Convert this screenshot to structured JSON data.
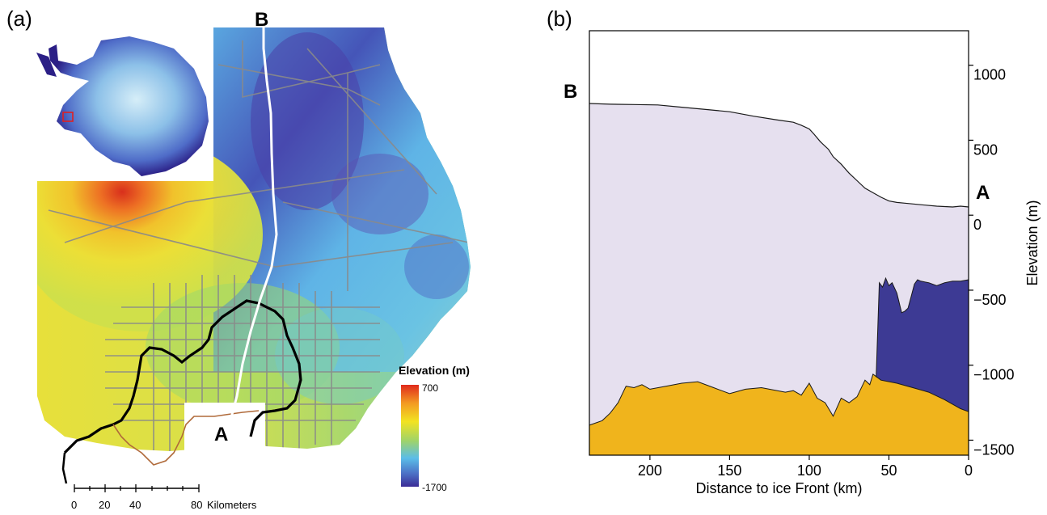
{
  "panel_a": {
    "label": "(a)",
    "marker_a": "A",
    "marker_b": "B",
    "colorbar_title": "Elevation (m)",
    "colorbar_max": "700",
    "colorbar_min": "-1700",
    "scalebar_ticks": [
      "0",
      "20",
      "40",
      "80"
    ],
    "scalebar_unit": "Kilometers",
    "colors": {
      "low": "#3b2c96",
      "mid_low": "#5fb8e8",
      "mid": "#a8d86b",
      "mid_high": "#f1e020",
      "high": "#e03020",
      "inset_ocean": "#2b1f86",
      "inset_ice_light": "#c8e8f4"
    }
  },
  "panel_b": {
    "label": "(b)",
    "marker_b": "B",
    "marker_a": "A"
  },
  "chart_data": [
    {
      "type": "area",
      "panel": "(b)",
      "xlabel": "Distance to ice Front (km)",
      "ylabel": "Elevation (m)",
      "xlim": [
        238,
        0
      ],
      "ylim": [
        -1600,
        1230
      ],
      "x_ticks": [
        200,
        150,
        100,
        50,
        0
      ],
      "y_ticks": [
        1000,
        500,
        0,
        -500,
        -1000,
        -1500
      ],
      "y_tick_labels": [
        "1000",
        "500",
        "0",
        "−500",
        "−1000",
        "−1500"
      ],
      "x_tick_labels": [
        "200",
        "150",
        "100",
        "50",
        "0"
      ],
      "end_labels": {
        "left": "B",
        "right": "A"
      },
      "colors": {
        "ice": "#e6e0ef",
        "bed": "#f0b41c",
        "ocean_cavity": "#3d3a94",
        "outline": "#1a1a1a"
      },
      "series": [
        {
          "x": [
            238,
            225,
            210,
            195,
            180,
            165,
            150,
            135,
            120,
            110,
            105,
            100,
            97,
            93,
            88,
            85,
            80,
            75,
            70,
            65,
            60,
            55,
            50,
            45,
            40,
            30,
            20,
            10,
            5,
            0
          ],
          "values": [
            745,
            740,
            738,
            735,
            720,
            705,
            690,
            660,
            635,
            620,
            600,
            575,
            540,
            490,
            440,
            390,
            340,
            280,
            230,
            180,
            150,
            120,
            95,
            85,
            80,
            70,
            60,
            55,
            60,
            55
          ]
        },
        {
          "x": [
            238,
            230,
            225,
            220,
            215,
            210,
            205,
            200,
            190,
            180,
            170,
            160,
            150,
            140,
            130,
            120,
            115,
            110,
            105,
            100,
            95,
            90,
            85,
            80,
            75,
            70,
            65,
            62,
            60,
            55,
            45,
            35,
            25,
            15,
            5,
            0
          ],
          "values": [
            -1400,
            -1370,
            -1320,
            -1250,
            -1140,
            -1150,
            -1130,
            -1160,
            -1140,
            -1120,
            -1110,
            -1150,
            -1190,
            -1160,
            -1150,
            -1170,
            -1180,
            -1170,
            -1200,
            -1120,
            -1220,
            -1250,
            -1340,
            -1220,
            -1250,
            -1210,
            -1100,
            -1130,
            -1060,
            -1100,
            -1120,
            -1150,
            -1180,
            -1230,
            -1290,
            -1310
          ]
        },
        {
          "x": [
            58,
            56,
            54,
            52,
            50,
            48,
            45,
            42,
            40,
            38,
            36,
            34,
            32,
            30,
            25,
            20,
            15,
            10,
            5,
            0
          ],
          "values": [
            -1080,
            -450,
            -480,
            -420,
            -470,
            -450,
            -520,
            -650,
            -640,
            -620,
            -540,
            -460,
            -430,
            -440,
            -450,
            -470,
            -450,
            -440,
            -440,
            -430
          ]
        }
      ]
    }
  ]
}
